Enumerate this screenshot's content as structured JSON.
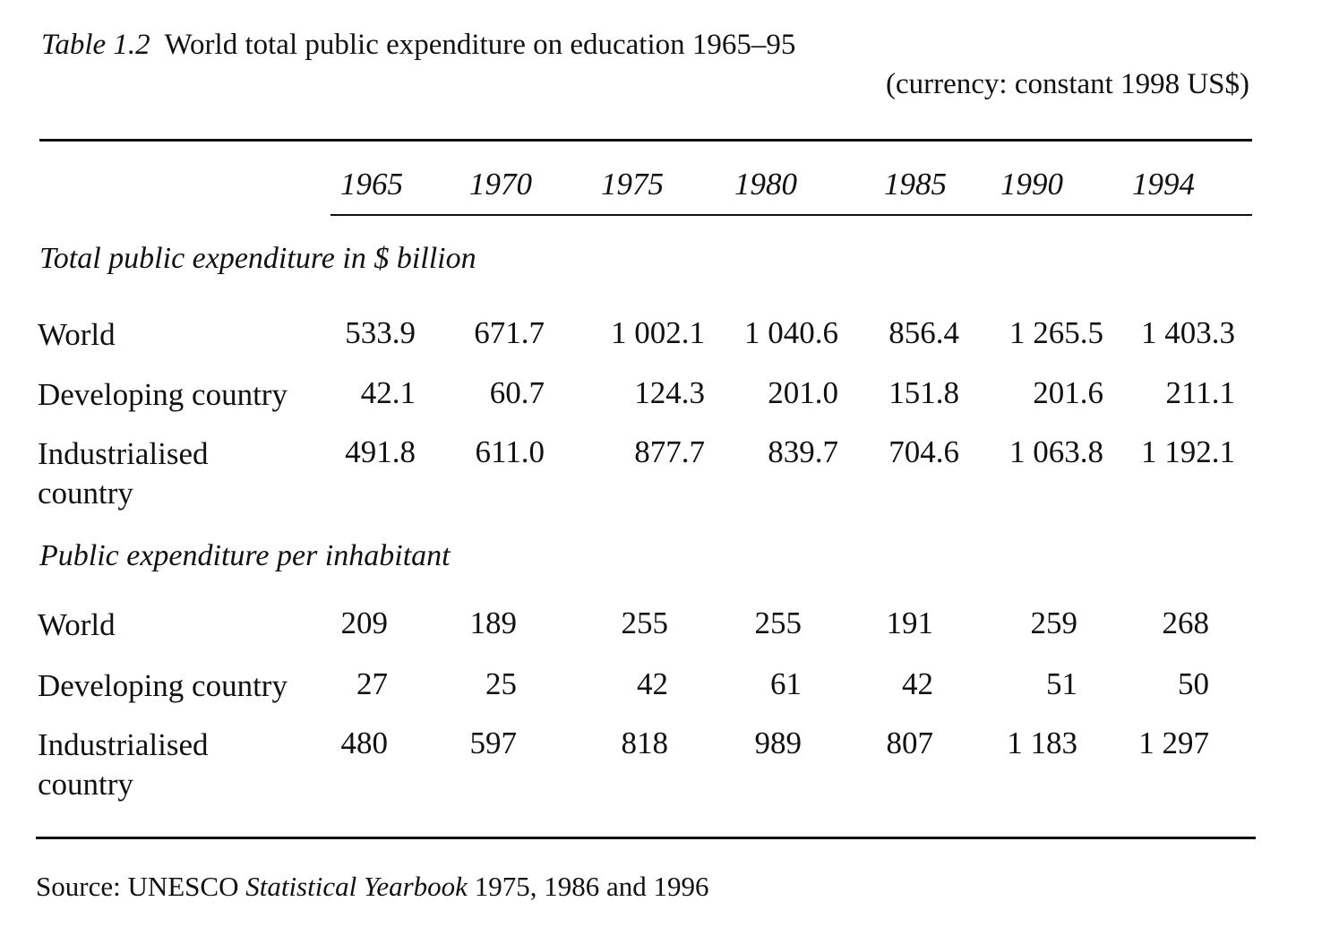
{
  "caption": {
    "label": "Table 1.2",
    "title": "World total public expenditure on education 1965–95",
    "currency_note": "(currency: constant 1998 US$)"
  },
  "years": [
    "1965",
    "1970",
    "1975",
    "1980",
    "1985",
    "1990",
    "1994"
  ],
  "sections": [
    {
      "title": "Total public expenditure in $ billion",
      "rows": [
        {
          "label": "World",
          "values": [
            "533.9",
            "671.7",
            "1 002.1",
            "1 040.6",
            "856.4",
            "1 265.5",
            "1 403.3"
          ]
        },
        {
          "label": "Developing country",
          "values": [
            "42.1",
            "60.7",
            "124.3",
            "201.0",
            "151.8",
            "201.6",
            "211.1"
          ]
        },
        {
          "label": "Industrialised country",
          "values": [
            "491.8",
            "611.0",
            "877.7",
            "839.7",
            "704.6",
            "1 063.8",
            "1 192.1"
          ]
        }
      ]
    },
    {
      "title": "Public expenditure per inhabitant",
      "rows": [
        {
          "label": "World",
          "values": [
            "209",
            "189",
            "255",
            "255",
            "191",
            "259",
            "268"
          ]
        },
        {
          "label": "Developing country",
          "values": [
            "27",
            "25",
            "42",
            "61",
            "42",
            "51",
            "50"
          ]
        },
        {
          "label": "Industrialised country",
          "values": [
            "480",
            "597",
            "818",
            "989",
            "807",
            "1 183",
            "1 297"
          ]
        }
      ]
    }
  ],
  "source": {
    "prefix": "Source: UNESCO ",
    "publication": "Statistical Yearbook",
    "suffix": " 1975, 1986 and 1996"
  }
}
